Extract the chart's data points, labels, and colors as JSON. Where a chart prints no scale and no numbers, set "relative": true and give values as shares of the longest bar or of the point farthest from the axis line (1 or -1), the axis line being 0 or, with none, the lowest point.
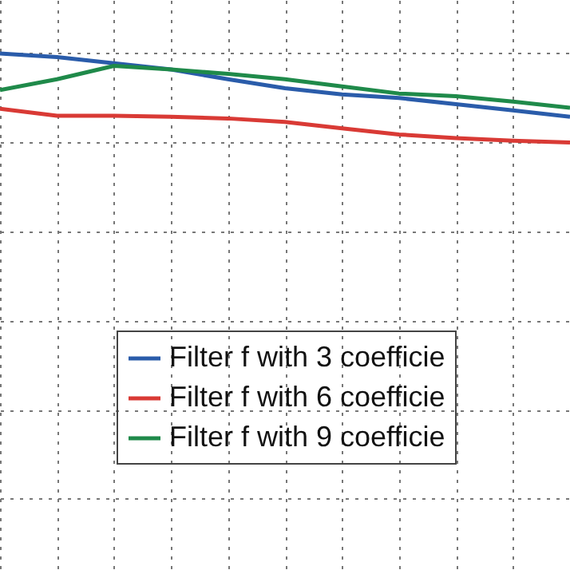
{
  "chart_data": {
    "type": "line",
    "relative": true,
    "grid": true,
    "legend": "bottom right",
    "line_style": "solid",
    "categories": [
      null,
      null,
      null,
      null,
      null,
      null,
      null,
      null,
      null,
      null,
      null
    ],
    "series": [
      {
        "name": "Filter f with 3 coefficie",
        "color": "#2a5caa",
        "values": [
          1,
          0.96,
          0.89,
          0.82,
          0.71,
          0.61,
          0.54,
          0.5,
          0.43,
          0.36,
          0.29
        ]
      },
      {
        "name": "Filter f with 6 coefficie",
        "color": "#d93a35",
        "values": [
          0.38,
          0.3,
          0.3,
          0.29,
          0.27,
          0.23,
          0.16,
          0.09,
          0.05,
          0.02,
          0
        ]
      },
      {
        "name": "Filter f with 9 coefficie",
        "color": "#1f8a4a",
        "values": [
          0.59,
          0.71,
          0.86,
          0.82,
          0.77,
          0.71,
          0.63,
          0.55,
          0.52,
          0.46,
          0.39
        ]
      }
    ]
  }
}
